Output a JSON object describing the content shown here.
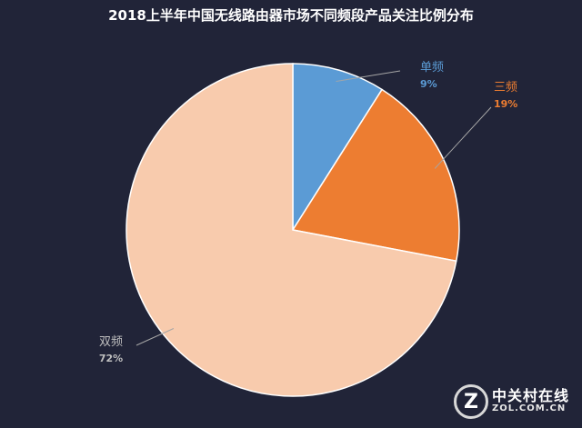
{
  "chart_data": {
    "type": "pie",
    "title": "2018上半年中国无线路由器市场不同频段产品关注比例分布",
    "start_angle_deg": 0,
    "direction": "clockwise",
    "slices": [
      {
        "label": "单频",
        "value": 9,
        "display": "9%",
        "color": "#5b9bd5",
        "label_color": "#5b9bd5"
      },
      {
        "label": "三频",
        "value": 19,
        "display": "19%",
        "color": "#ed7d31",
        "label_color": "#ed7d31"
      },
      {
        "label": "双频",
        "value": 72,
        "display": "72%",
        "color": "#f8cbad",
        "label_color": "#bfbfbf"
      }
    ]
  },
  "watermark": {
    "logo_letter": "Z",
    "text_cn": "中关村在线",
    "text_en": "ZOL.COM.CN"
  }
}
